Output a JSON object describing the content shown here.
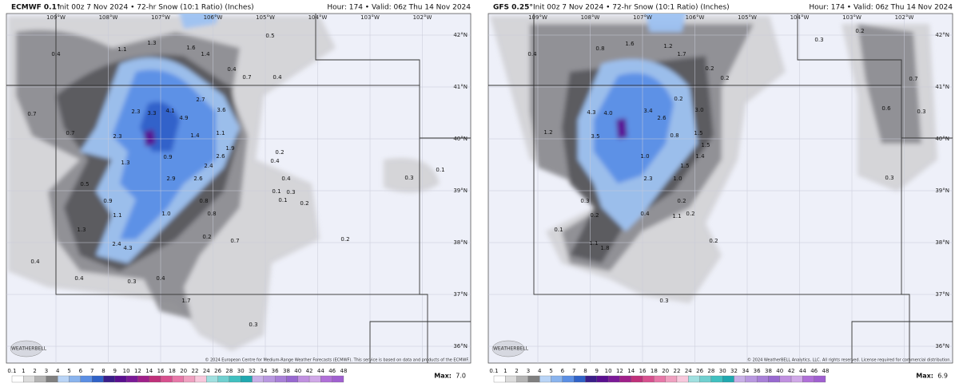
{
  "panels": [
    {
      "model": "ECMWF 0.1°",
      "title": "Init 00z 7 Nov 2024 • 72-hr Snow (10:1 Ratio) (Inches)",
      "valid": "Hour: 174 • Valid: 06z Thu 14 Nov 2024",
      "lon_labels": [
        "109°W",
        "108°W",
        "107°W",
        "106°W",
        "105°W",
        "104°W",
        "103°W",
        "102°W"
      ],
      "lat_labels": [
        "42°N",
        "41°N",
        "40°N",
        "39°N",
        "38°N",
        "37°N",
        "36°N"
      ],
      "contour_labels": [
        "0.4",
        "1.1",
        "1.3",
        "1.6",
        "1.4",
        "0.5",
        "0.4",
        "0.7",
        "0.4",
        "0.7",
        "0.7",
        "2.3",
        "3.3",
        "4.1",
        "4.9",
        "2.7",
        "3.6",
        "2.3",
        "1.4",
        "1.1",
        "1.9",
        "2.6",
        "1.3",
        "0.9",
        "2.4",
        "2.9",
        "2.6",
        "0.5",
        "0.9",
        "0.8",
        "1.1",
        "1.0",
        "0.8",
        "1.3",
        "2.4",
        "4.3",
        "0.2",
        "0.7",
        "0.4",
        "0.4",
        "0.3",
        "0.4",
        "1.7",
        "0.3",
        "0.2",
        "0.4",
        "0.4",
        "0.1",
        "0.3",
        "0.1",
        "0.2",
        "0.3",
        "0.1",
        "0.2"
      ],
      "logo": "WEATHERBELL",
      "copyright": "© 2024 European Centre for Medium-Range Weather Forecasts (ECMWF). This service is based on data and products of the ECMWF.",
      "colorbar_ticks": [
        "0.1",
        "1",
        "2",
        "3",
        "4",
        "5",
        "6",
        "7",
        "8",
        "9",
        "10",
        "12",
        "14",
        "16",
        "18",
        "20",
        "22",
        "24",
        "26",
        "28",
        "30",
        "32",
        "34",
        "36",
        "38",
        "40",
        "42",
        "44",
        "46",
        "48"
      ],
      "max_label": "Max:",
      "max_value": "7.0"
    },
    {
      "model": "GFS 0.25°",
      "title": "Init 00z 7 Nov 2024 • 72-hr Snow (10:1 Ratio) (Inches)",
      "valid": "Hour: 174 • Valid: 06z Thu 14 Nov 2024",
      "lon_labels": [
        "109°W",
        "108°W",
        "107°W",
        "106°W",
        "105°W",
        "104°W",
        "103°W",
        "102°W"
      ],
      "lat_labels": [
        "42°N",
        "41°N",
        "40°N",
        "39°N",
        "38°N",
        "37°N",
        "36°N"
      ],
      "contour_labels": [
        "0.4",
        "0.8",
        "1.6",
        "1.2",
        "1.7",
        "0.3",
        "0.2",
        "0.2",
        "0.2",
        "0.7",
        "0.6",
        "0.3",
        "1.2",
        "4.3",
        "4.0",
        "3.4",
        "0.2",
        "3.0",
        "2.6",
        "3.5",
        "0.8",
        "1.5",
        "1.0",
        "1.5",
        "1.4",
        "1.5",
        "2.3",
        "1.0",
        "0.3",
        "0.3",
        "0.2",
        "0.2",
        "0.4",
        "1.1",
        "0.2",
        "0.1",
        "1.1",
        "1.8",
        "0.2",
        "0.3"
      ],
      "logo": "WEATHERBELL",
      "copyright": "© 2024 WeatherBELL Analytics, LLC. All rights reserved. License required for commercial distribution.",
      "colorbar_ticks": [
        "0.1",
        "1",
        "2",
        "3",
        "4",
        "5",
        "6",
        "7",
        "8",
        "9",
        "10",
        "12",
        "14",
        "16",
        "18",
        "20",
        "22",
        "24",
        "26",
        "28",
        "30",
        "32",
        "34",
        "36",
        "38",
        "40",
        "42",
        "44",
        "46",
        "48"
      ],
      "max_label": "Max:",
      "max_value": "6.9"
    }
  ]
}
